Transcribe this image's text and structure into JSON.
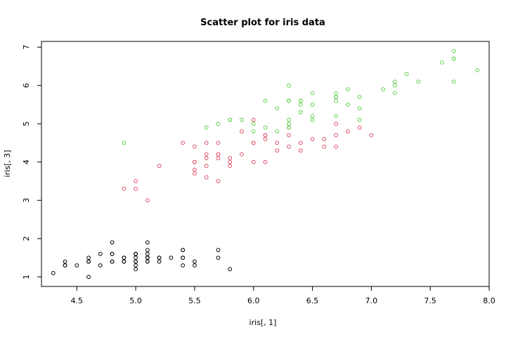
{
  "chart_data": {
    "type": "scatter",
    "title": "Scatter plot for iris data",
    "xlabel": "iris[, 1]",
    "ylabel": "iris[, 3]",
    "xlim": [
      4.2,
      8.0
    ],
    "ylim": [
      0.75,
      7.15
    ],
    "x_ticks": [
      "4.5",
      "5.0",
      "5.5",
      "6.0",
      "6.5",
      "7.0",
      "7.5",
      "8.0"
    ],
    "y_ticks": [
      "1",
      "2",
      "3",
      "4",
      "5",
      "6",
      "7"
    ],
    "grid": false,
    "marker": "open-circle",
    "series": [
      {
        "color": "#000000",
        "points": [
          [
            5.1,
            1.4
          ],
          [
            4.9,
            1.4
          ],
          [
            4.7,
            1.3
          ],
          [
            4.6,
            1.5
          ],
          [
            5.0,
            1.4
          ],
          [
            5.4,
            1.7
          ],
          [
            4.6,
            1.4
          ],
          [
            5.0,
            1.5
          ],
          [
            4.4,
            1.4
          ],
          [
            4.9,
            1.5
          ],
          [
            5.4,
            1.5
          ],
          [
            4.8,
            1.6
          ],
          [
            4.8,
            1.4
          ],
          [
            4.3,
            1.1
          ],
          [
            5.8,
            1.2
          ],
          [
            5.7,
            1.5
          ],
          [
            5.4,
            1.3
          ],
          [
            5.1,
            1.4
          ],
          [
            5.7,
            1.7
          ],
          [
            5.1,
            1.5
          ],
          [
            5.4,
            1.7
          ],
          [
            5.1,
            1.5
          ],
          [
            4.6,
            1.0
          ],
          [
            5.1,
            1.7
          ],
          [
            4.8,
            1.9
          ],
          [
            5.0,
            1.6
          ],
          [
            5.0,
            1.6
          ],
          [
            5.2,
            1.5
          ],
          [
            5.2,
            1.4
          ],
          [
            4.7,
            1.6
          ],
          [
            4.8,
            1.6
          ],
          [
            5.4,
            1.5
          ],
          [
            5.2,
            1.5
          ],
          [
            5.5,
            1.4
          ],
          [
            4.9,
            1.5
          ],
          [
            5.0,
            1.2
          ],
          [
            5.5,
            1.3
          ],
          [
            4.9,
            1.4
          ],
          [
            4.4,
            1.3
          ],
          [
            5.1,
            1.5
          ],
          [
            5.0,
            1.3
          ],
          [
            4.5,
            1.3
          ],
          [
            4.4,
            1.3
          ],
          [
            5.0,
            1.6
          ],
          [
            5.1,
            1.9
          ],
          [
            4.8,
            1.4
          ],
          [
            5.1,
            1.6
          ],
          [
            4.6,
            1.4
          ],
          [
            5.3,
            1.5
          ],
          [
            5.0,
            1.4
          ]
        ]
      },
      {
        "color": "#DF536B",
        "points": [
          [
            7.0,
            4.7
          ],
          [
            6.4,
            4.5
          ],
          [
            6.9,
            4.9
          ],
          [
            5.5,
            4.0
          ],
          [
            6.5,
            4.6
          ],
          [
            5.7,
            4.5
          ],
          [
            6.3,
            4.7
          ],
          [
            4.9,
            3.3
          ],
          [
            6.6,
            4.6
          ],
          [
            5.2,
            3.9
          ],
          [
            5.0,
            3.5
          ],
          [
            5.9,
            4.2
          ],
          [
            6.0,
            4.0
          ],
          [
            6.1,
            4.7
          ],
          [
            5.6,
            3.6
          ],
          [
            6.7,
            4.4
          ],
          [
            5.6,
            4.5
          ],
          [
            5.8,
            4.1
          ],
          [
            6.2,
            4.5
          ],
          [
            5.6,
            3.9
          ],
          [
            5.9,
            4.8
          ],
          [
            6.1,
            4.0
          ],
          [
            6.3,
            4.9
          ],
          [
            6.1,
            4.7
          ],
          [
            6.4,
            4.3
          ],
          [
            6.6,
            4.4
          ],
          [
            6.8,
            4.8
          ],
          [
            6.7,
            5.0
          ],
          [
            6.0,
            4.5
          ],
          [
            5.7,
            3.5
          ],
          [
            5.5,
            3.8
          ],
          [
            5.5,
            3.7
          ],
          [
            5.8,
            3.9
          ],
          [
            6.0,
            5.1
          ],
          [
            5.4,
            4.5
          ],
          [
            6.0,
            4.5
          ],
          [
            6.7,
            4.7
          ],
          [
            6.3,
            4.4
          ],
          [
            5.6,
            4.1
          ],
          [
            5.5,
            4.0
          ],
          [
            5.5,
            4.4
          ],
          [
            6.1,
            4.6
          ],
          [
            5.8,
            4.0
          ],
          [
            5.0,
            3.3
          ],
          [
            5.6,
            4.2
          ],
          [
            5.7,
            4.2
          ],
          [
            5.7,
            4.2
          ],
          [
            6.2,
            4.3
          ],
          [
            5.1,
            3.0
          ],
          [
            5.7,
            4.1
          ]
        ]
      },
      {
        "color": "#61D04F",
        "points": [
          [
            6.3,
            6.0
          ],
          [
            5.8,
            5.1
          ],
          [
            7.1,
            5.9
          ],
          [
            6.3,
            5.6
          ],
          [
            6.5,
            5.8
          ],
          [
            7.6,
            6.6
          ],
          [
            4.9,
            4.5
          ],
          [
            7.3,
            6.3
          ],
          [
            6.7,
            5.8
          ],
          [
            7.2,
            6.1
          ],
          [
            6.5,
            5.1
          ],
          [
            6.4,
            5.3
          ],
          [
            6.8,
            5.5
          ],
          [
            5.7,
            5.0
          ],
          [
            5.8,
            5.1
          ],
          [
            6.4,
            5.3
          ],
          [
            6.5,
            5.5
          ],
          [
            7.7,
            6.7
          ],
          [
            7.7,
            6.9
          ],
          [
            6.0,
            5.0
          ],
          [
            6.9,
            5.7
          ],
          [
            5.6,
            4.9
          ],
          [
            7.7,
            6.7
          ],
          [
            6.3,
            4.9
          ],
          [
            6.7,
            5.7
          ],
          [
            7.2,
            6.0
          ],
          [
            6.2,
            4.8
          ],
          [
            6.1,
            4.9
          ],
          [
            6.4,
            5.6
          ],
          [
            7.2,
            5.8
          ],
          [
            7.4,
            6.1
          ],
          [
            7.9,
            6.4
          ],
          [
            6.4,
            5.6
          ],
          [
            6.3,
            5.1
          ],
          [
            6.1,
            5.6
          ],
          [
            7.7,
            6.1
          ],
          [
            6.3,
            5.6
          ],
          [
            6.4,
            5.5
          ],
          [
            6.0,
            4.8
          ],
          [
            6.9,
            5.4
          ],
          [
            6.7,
            5.6
          ],
          [
            6.9,
            5.1
          ],
          [
            5.8,
            5.1
          ],
          [
            6.8,
            5.9
          ],
          [
            6.7,
            5.7
          ],
          [
            6.7,
            5.2
          ],
          [
            6.3,
            5.0
          ],
          [
            6.5,
            5.2
          ],
          [
            6.2,
            5.4
          ],
          [
            5.9,
            5.1
          ]
        ]
      }
    ]
  }
}
